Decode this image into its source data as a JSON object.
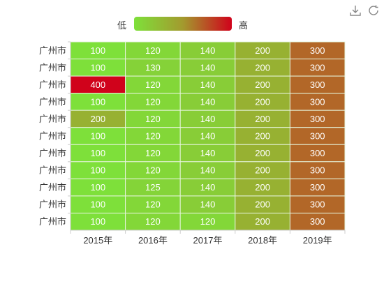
{
  "toolbox": {
    "download_icon": "download-icon",
    "refresh_icon": "refresh-icon"
  },
  "legend": {
    "low_label": "低",
    "high_label": "高",
    "colors": [
      "#7ee03a",
      "#a39a2e",
      "#d0021b"
    ]
  },
  "chart_data": {
    "type": "heatmap",
    "x_categories": [
      "2015年",
      "2016年",
      "2017年",
      "2018年",
      "2019年"
    ],
    "y_categories": [
      "广州市",
      "广州市",
      "广州市",
      "广州市",
      "广州市",
      "广州市",
      "广州市",
      "广州市",
      "广州市",
      "广州市",
      "广州市"
    ],
    "values": [
      [
        100,
        120,
        140,
        200,
        300
      ],
      [
        100,
        130,
        140,
        200,
        300
      ],
      [
        400,
        120,
        140,
        200,
        300
      ],
      [
        100,
        120,
        140,
        200,
        300
      ],
      [
        200,
        120,
        140,
        200,
        300
      ],
      [
        100,
        120,
        140,
        200,
        300
      ],
      [
        100,
        120,
        140,
        200,
        300
      ],
      [
        100,
        120,
        140,
        200,
        300
      ],
      [
        100,
        125,
        140,
        200,
        300
      ],
      [
        100,
        120,
        140,
        200,
        300
      ],
      [
        100,
        120,
        120,
        200,
        300
      ]
    ],
    "value_range": [
      100,
      400
    ],
    "cell_label_color": "#ffffff",
    "axis_label_color": "#333333",
    "cell_border_color": "#e6f5dc"
  }
}
